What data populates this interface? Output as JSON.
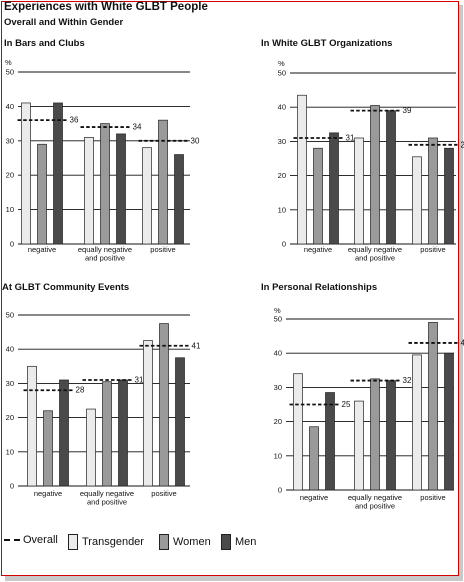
{
  "title": "Experiences with White GLBT People",
  "subtitle": "Overall and Within Gender",
  "legend": {
    "overall": "Overall",
    "transgender": "Transgender",
    "women": "Women",
    "men": "Men"
  },
  "colors": {
    "transgender": "#ebebeb",
    "women": "#9a9a9a",
    "men": "#4a4a4a",
    "overall": "#111111"
  },
  "chart_data": [
    {
      "type": "bar",
      "title": "In Bars and Clubs",
      "ylabel": "%",
      "ylim": [
        0,
        50
      ],
      "yticks": [
        "0",
        "10",
        "20",
        "30",
        "40",
        "50"
      ],
      "categories": [
        [
          "negative"
        ],
        [
          "equally negative",
          "and positive"
        ],
        [
          "positive"
        ]
      ],
      "series": [
        {
          "name": "Transgender",
          "values": [
            41,
            31,
            28
          ]
        },
        {
          "name": "Women",
          "values": [
            29,
            35,
            36
          ]
        },
        {
          "name": "Men",
          "values": [
            41,
            32,
            26
          ]
        }
      ],
      "overall": [
        36,
        34,
        30
      ],
      "overall_labels": [
        "36",
        "34",
        "30"
      ]
    },
    {
      "type": "bar",
      "title": "In White GLBT Organizations",
      "ylabel": "%",
      "ylim": [
        0,
        50
      ],
      "yticks": [
        "0",
        "10",
        "20",
        "30",
        "40",
        "50"
      ],
      "categories": [
        [
          "negative"
        ],
        [
          "equally negative",
          "and positive"
        ],
        [
          "positive"
        ]
      ],
      "series": [
        {
          "name": "Transgender",
          "values": [
            43.5,
            31,
            25.5
          ]
        },
        {
          "name": "Women",
          "values": [
            28,
            40.5,
            31
          ]
        },
        {
          "name": "Men",
          "values": [
            32.5,
            39,
            28
          ]
        }
      ],
      "overall": [
        31,
        39,
        29
      ],
      "overall_labels": [
        "31",
        "39",
        "29"
      ]
    },
    {
      "type": "bar",
      "title": "At GLBT Community Events",
      "ylabel": "",
      "ylim": [
        0,
        50
      ],
      "yticks": [
        "0",
        "10",
        "20",
        "30",
        "40",
        "50"
      ],
      "categories": [
        [
          "negative"
        ],
        [
          "equally negative",
          "and positive"
        ],
        [
          "positive"
        ]
      ],
      "series": [
        {
          "name": "Transgender",
          "values": [
            35,
            22.5,
            42.5
          ]
        },
        {
          "name": "Women",
          "values": [
            22,
            30.5,
            47.5
          ]
        },
        {
          "name": "Men",
          "values": [
            31,
            31,
            37.5
          ]
        }
      ],
      "overall": [
        28,
        31,
        41
      ],
      "overall_labels": [
        "28",
        "31",
        "41"
      ]
    },
    {
      "type": "bar",
      "title": "In Personal Relationships",
      "ylabel": "%",
      "ylim": [
        0,
        50
      ],
      "yticks": [
        "0",
        "10",
        "20",
        "30",
        "40",
        "50"
      ],
      "categories": [
        [
          "negative"
        ],
        [
          "equally negative",
          "and positive"
        ],
        [
          "positive"
        ]
      ],
      "series": [
        {
          "name": "Transgender",
          "values": [
            34,
            26,
            39.5
          ]
        },
        {
          "name": "Women",
          "values": [
            18.5,
            32.5,
            49
          ]
        },
        {
          "name": "Men",
          "values": [
            28.5,
            32,
            40
          ]
        }
      ],
      "overall": [
        25,
        32,
        43
      ],
      "overall_labels": [
        "25",
        "32",
        "43"
      ]
    }
  ]
}
